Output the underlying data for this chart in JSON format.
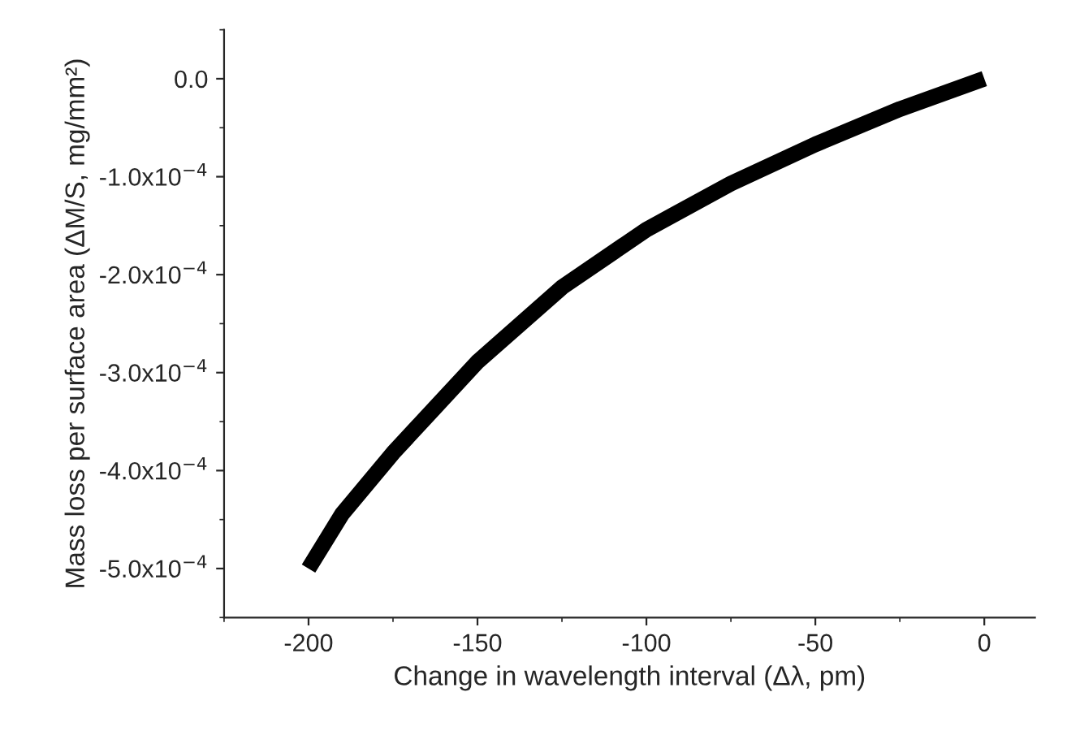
{
  "chart_data": {
    "type": "line",
    "xlabel": "Change in wavelength interval (Δλ, pm)",
    "ylabel": "Mass loss per surface area (ΔM/S, mg/mm²)",
    "x": [
      -200,
      -190,
      -175,
      -150,
      -125,
      -100,
      -75,
      -50,
      -25,
      0
    ],
    "series": [
      {
        "color": "#000000",
        "values": [
          -0.0005,
          -0.000444,
          -0.000382,
          -0.000289,
          -0.000213,
          -0.000154,
          -0.000107,
          -6.7e-05,
          -3.1e-05,
          0.0
        ]
      }
    ],
    "xlim": [
      -225,
      15
    ],
    "xticks": [
      -200,
      -150,
      -100,
      -50,
      0
    ],
    "ylim": [
      -0.00055,
      5e-05
    ],
    "yticks": [
      {
        "value": 0.0,
        "label": "0.0"
      },
      {
        "value": -0.0001,
        "label": "-1.0x10$^{−4}$"
      },
      {
        "value": -0.0002,
        "label": "-2.0x10$^{−4}$"
      },
      {
        "value": -0.0003,
        "label": "-3.0x10$^{−4}$"
      },
      {
        "value": -0.0004,
        "label": "-4.0x10$^{−4}$"
      },
      {
        "value": -0.0005,
        "label": "-5.0x10$^{−4}$"
      }
    ],
    "grid": false,
    "line_style": "solid"
  }
}
